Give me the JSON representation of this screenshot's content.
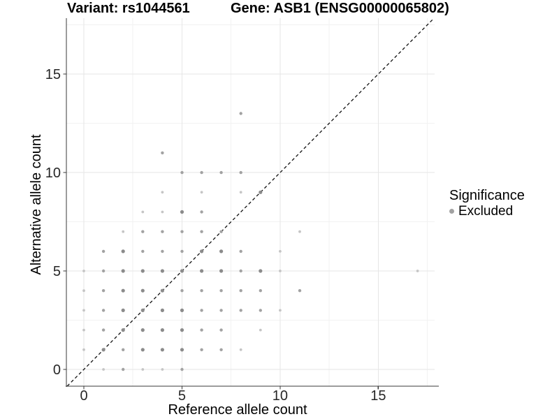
{
  "header": {
    "variant_title": "Variant: rs1044561",
    "gene_title": "Gene: ASB1 (ENSG00000065802)"
  },
  "chart_data": {
    "type": "scatter",
    "titles": {
      "variant": "Variant: rs1044561",
      "gene": "Gene: ASB1 (ENSG00000065802)"
    },
    "xlabel": "Reference allele count",
    "ylabel": "Alternative allele count",
    "xlim": [
      -0.89,
      17.87
    ],
    "ylim": [
      -0.85,
      17.84
    ],
    "x_ticks": [
      0,
      5,
      10,
      15
    ],
    "y_ticks": [
      0,
      5,
      10,
      15
    ],
    "x_minor_ticks": [
      2.5,
      7.5,
      12.5,
      17.5
    ],
    "y_minor_ticks": [
      2.5,
      7.5,
      12.5,
      17.5
    ],
    "grid": "major+minor",
    "identity_line": {
      "show": true,
      "style": "dashed",
      "color": "#111111"
    },
    "legend_position": "right",
    "legend": {
      "title": "Significance",
      "entries": [
        {
          "label": "Excluded",
          "color": "#a2a2a2"
        }
      ]
    },
    "point_classes": {
      "1": {
        "r": 1.9,
        "color": "#c5c5c5"
      },
      "2": {
        "r": 2.2,
        "color": "#a2a2a2"
      },
      "3": {
        "r": 2.6,
        "color": "#8b8b8b"
      }
    },
    "series": [
      {
        "name": "Excluded",
        "points": [
          [
            1,
            0,
            1
          ],
          [
            2,
            0,
            2
          ],
          [
            3,
            0,
            1
          ],
          [
            4,
            0,
            1
          ],
          [
            5,
            0,
            2
          ],
          [
            0,
            1,
            1
          ],
          [
            1,
            1,
            3
          ],
          [
            2,
            1,
            2
          ],
          [
            3,
            1,
            3
          ],
          [
            4,
            1,
            3
          ],
          [
            5,
            1,
            3
          ],
          [
            6,
            1,
            2
          ],
          [
            7,
            1,
            2
          ],
          [
            8,
            1,
            1
          ],
          [
            0,
            2,
            1
          ],
          [
            1,
            2,
            2
          ],
          [
            2,
            2,
            3
          ],
          [
            3,
            2,
            3
          ],
          [
            4,
            2,
            3
          ],
          [
            5,
            2,
            3
          ],
          [
            6,
            2,
            2
          ],
          [
            7,
            2,
            2
          ],
          [
            9,
            2,
            1
          ],
          [
            0,
            3,
            1
          ],
          [
            1,
            3,
            2
          ],
          [
            2,
            3,
            3
          ],
          [
            3,
            3,
            3
          ],
          [
            4,
            3,
            3
          ],
          [
            5,
            3,
            3
          ],
          [
            6,
            3,
            2
          ],
          [
            7,
            3,
            2
          ],
          [
            8,
            3,
            2
          ],
          [
            9,
            3,
            2
          ],
          [
            10,
            3,
            1
          ],
          [
            0,
            4,
            1
          ],
          [
            1,
            4,
            2
          ],
          [
            2,
            4,
            3
          ],
          [
            3,
            4,
            3
          ],
          [
            4,
            4,
            3
          ],
          [
            5,
            4,
            2
          ],
          [
            6,
            4,
            2
          ],
          [
            7,
            4,
            2
          ],
          [
            8,
            4,
            2
          ],
          [
            9,
            4,
            2
          ],
          [
            11,
            4,
            2
          ],
          [
            0,
            5,
            1
          ],
          [
            1,
            5,
            2
          ],
          [
            2,
            5,
            3
          ],
          [
            3,
            5,
            3
          ],
          [
            4,
            5,
            3
          ],
          [
            5,
            5,
            3
          ],
          [
            6,
            5,
            3
          ],
          [
            7,
            5,
            3
          ],
          [
            8,
            5,
            2
          ],
          [
            9,
            5,
            3
          ],
          [
            10,
            5,
            1
          ],
          [
            17,
            5,
            1
          ],
          [
            1,
            6,
            2
          ],
          [
            2,
            6,
            3
          ],
          [
            3,
            6,
            2
          ],
          [
            4,
            6,
            2
          ],
          [
            5,
            6,
            2
          ],
          [
            6,
            6,
            3
          ],
          [
            7,
            6,
            3
          ],
          [
            8,
            6,
            2
          ],
          [
            10,
            6,
            1
          ],
          [
            2,
            7,
            1
          ],
          [
            3,
            7,
            2
          ],
          [
            4,
            7,
            2
          ],
          [
            5,
            7,
            2
          ],
          [
            6,
            7,
            2
          ],
          [
            7,
            7,
            2
          ],
          [
            11,
            7,
            1
          ],
          [
            3,
            8,
            1
          ],
          [
            4,
            8,
            1
          ],
          [
            5,
            8,
            3
          ],
          [
            6,
            8,
            2
          ],
          [
            4,
            9,
            1
          ],
          [
            6,
            9,
            1
          ],
          [
            8,
            9,
            1
          ],
          [
            9,
            9,
            3
          ],
          [
            5,
            10,
            2
          ],
          [
            6,
            10,
            2
          ],
          [
            7,
            10,
            2
          ],
          [
            8,
            10,
            2
          ],
          [
            4,
            11,
            2
          ],
          [
            8,
            13,
            2
          ]
        ]
      }
    ],
    "colors": {
      "grid_major": "#e6e6e6",
      "grid_minor": "#f2f2f2",
      "axis_line": "#3a3a3a",
      "tick_text": "#262626"
    }
  }
}
